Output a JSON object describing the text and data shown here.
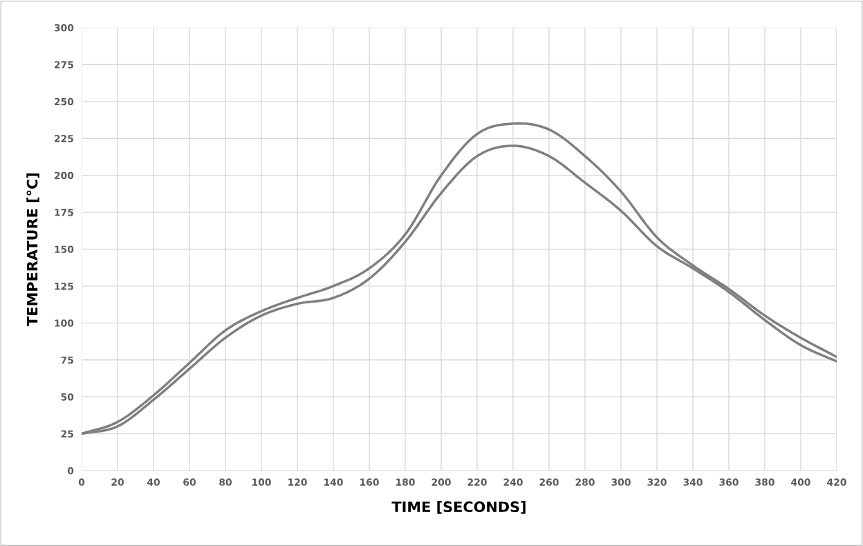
{
  "chart_data": {
    "type": "line",
    "xlabel": "TIME [SECONDS]",
    "ylabel": "TEMPERATURE [°C]",
    "x": [
      0,
      20,
      40,
      60,
      80,
      100,
      120,
      140,
      160,
      180,
      200,
      220,
      240,
      260,
      280,
      300,
      320,
      340,
      360,
      380,
      400,
      420
    ],
    "series": [
      {
        "color": "#7f7f7f",
        "values": [
          25,
          33,
          51,
          73,
          95,
          108,
          117,
          125,
          137,
          160,
          200,
          228,
          235,
          231,
          213,
          189,
          158,
          139,
          123,
          105,
          90,
          77
        ]
      },
      {
        "color": "#7f7f7f",
        "values": [
          25,
          30,
          48,
          69,
          90,
          105,
          113,
          117,
          130,
          155,
          188,
          213,
          220,
          213,
          195,
          176,
          152,
          137,
          121,
          102,
          85,
          74
        ]
      }
    ],
    "xlim": [
      0,
      420
    ],
    "xticks": [
      0,
      20,
      40,
      60,
      80,
      100,
      120,
      140,
      160,
      180,
      200,
      220,
      240,
      260,
      280,
      300,
      320,
      340,
      360,
      380,
      400,
      420
    ],
    "ylim": [
      0,
      300
    ],
    "yticks": [
      0,
      25,
      50,
      75,
      100,
      125,
      150,
      175,
      200,
      225,
      250,
      275,
      300
    ],
    "grid": true,
    "legend": false,
    "marker": "none",
    "line_style": "solid"
  }
}
